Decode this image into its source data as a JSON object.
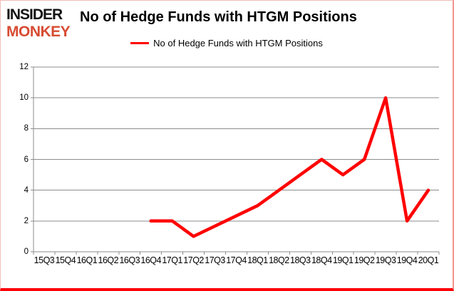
{
  "logo": {
    "line1": "INSIDER",
    "line2": "MONKEY",
    "line1_color": "#141414",
    "line2_color": "#d74b32"
  },
  "header": {
    "title": "No of Hedge Funds with HTGM Positions"
  },
  "legend": {
    "label": "No of Hedge Funds with HTGM Positions"
  },
  "chart_data": {
    "type": "line",
    "title": "No of Hedge Funds with HTGM Positions",
    "categories": [
      "15Q3",
      "15Q4",
      "16Q1",
      "16Q2",
      "16Q3",
      "16Q4",
      "17Q1",
      "17Q2",
      "17Q3",
      "17Q4",
      "18Q1",
      "18Q2",
      "18Q3",
      "18Q4",
      "19Q1",
      "19Q2",
      "19Q3",
      "19Q4",
      "20Q1"
    ],
    "series": [
      {
        "name": "No of Hedge Funds with HTGM Positions",
        "color": "#ff0000",
        "values": [
          null,
          null,
          null,
          null,
          null,
          2,
          2,
          1,
          null,
          null,
          3,
          4,
          5,
          6,
          5,
          6,
          10,
          2,
          4
        ]
      }
    ],
    "ylim": [
      0,
      12
    ],
    "yticks": [
      0,
      2,
      4,
      6,
      8,
      10,
      12
    ],
    "xlabel": "",
    "ylabel": "",
    "grid": "horizontal",
    "gridline_color": "#8c8c8c",
    "axis_color": "#8c8c8c",
    "legend_position": "top-center",
    "notes": "Line is drawn only from 16Q4 onward; segment runs straight from 17Q2 (1) to 18Q1 (3) with no plotted points at 17Q3/17Q4."
  },
  "colors": {
    "background": "#ffffff",
    "line": "#ff0000",
    "grid": "#8c8c8c",
    "text": "#000000",
    "frame_bottom_border": "#fd0006"
  }
}
